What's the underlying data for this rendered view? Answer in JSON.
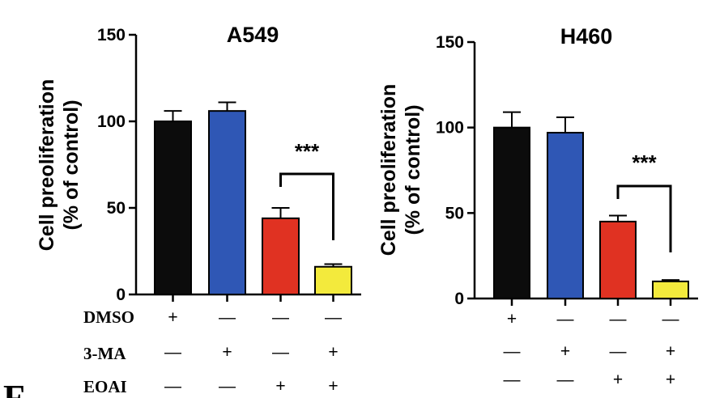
{
  "panel_letter": "F",
  "condition_labels": [
    "DMSO",
    "3-MA",
    "EOAI"
  ],
  "sig_label": "***",
  "chart_data": [
    {
      "type": "bar",
      "title": "A549",
      "ylabel": [
        "Cell preoliferation",
        "(% of control)"
      ],
      "ylim": [
        0,
        150
      ],
      "yticks": [
        0,
        50,
        100,
        150
      ],
      "values": [
        100,
        106,
        44,
        16
      ],
      "errors": [
        6,
        5,
        6,
        1.5
      ],
      "colors": [
        "#0c0c0c",
        "#2f57b5",
        "#e03222",
        "#f3ea3c"
      ],
      "signs": [
        [
          "+",
          "—",
          "—",
          "—"
        ],
        [
          "—",
          "+",
          "—",
          "+"
        ],
        [
          "—",
          "—",
          "+",
          "+"
        ]
      ],
      "significance": {
        "from": 2,
        "to": 3,
        "label": "***"
      }
    },
    {
      "type": "bar",
      "title": "H460",
      "ylabel": [
        "Cell preoliferation",
        "(% of control)"
      ],
      "ylim": [
        0,
        150
      ],
      "yticks": [
        0,
        50,
        100,
        150
      ],
      "values": [
        100,
        97,
        45,
        10
      ],
      "errors": [
        9,
        9,
        3.5,
        0.8
      ],
      "colors": [
        "#0c0c0c",
        "#2f57b5",
        "#e03222",
        "#f3ea3c"
      ],
      "signs": [
        [
          "+",
          "—",
          "—",
          "—"
        ],
        [
          "—",
          "+",
          "—",
          "+"
        ],
        [
          "—",
          "—",
          "+",
          "+"
        ]
      ],
      "significance": {
        "from": 2,
        "to": 3,
        "label": "***"
      }
    }
  ]
}
